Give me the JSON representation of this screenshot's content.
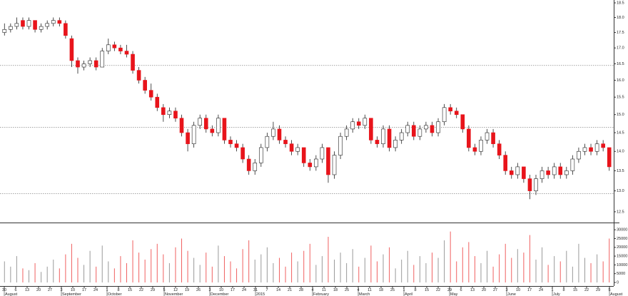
{
  "chart_data": {
    "type": "candlestick",
    "log_scale": true,
    "up_color": "#ffffff",
    "down_color": "#e8141b",
    "wick_color": "#222222",
    "candles": [
      [
        17.5,
        17.8,
        17.4,
        17.6
      ],
      [
        17.6,
        17.8,
        17.5,
        17.7
      ],
      [
        17.7,
        18.0,
        17.6,
        17.8
      ],
      [
        17.9,
        18.0,
        17.6,
        17.7
      ],
      [
        17.7,
        18.0,
        17.6,
        17.9
      ],
      [
        17.9,
        17.9,
        17.5,
        17.6
      ],
      [
        17.6,
        17.8,
        17.5,
        17.7
      ],
      [
        17.7,
        17.9,
        17.6,
        17.8
      ],
      [
        17.8,
        18.0,
        17.7,
        17.9
      ],
      [
        17.9,
        18.0,
        17.7,
        17.8
      ],
      [
        17.8,
        17.9,
        17.3,
        17.4
      ],
      [
        17.3,
        17.4,
        16.4,
        16.6
      ],
      [
        16.6,
        16.7,
        16.2,
        16.4
      ],
      [
        16.4,
        16.6,
        16.3,
        16.5
      ],
      [
        16.5,
        16.7,
        16.4,
        16.6
      ],
      [
        16.6,
        16.7,
        16.3,
        16.4
      ],
      [
        16.4,
        17.0,
        16.4,
        16.9
      ],
      [
        16.9,
        17.3,
        16.8,
        17.1
      ],
      [
        17.1,
        17.2,
        16.9,
        17.0
      ],
      [
        17.0,
        17.1,
        16.8,
        16.9
      ],
      [
        16.9,
        17.1,
        16.7,
        16.8
      ],
      [
        16.8,
        16.9,
        16.2,
        16.3
      ],
      [
        16.3,
        16.4,
        15.9,
        16.0
      ],
      [
        16.0,
        16.1,
        15.6,
        15.7
      ],
      [
        15.7,
        15.9,
        15.4,
        15.5
      ],
      [
        15.5,
        15.6,
        15.1,
        15.2
      ],
      [
        15.2,
        15.3,
        14.8,
        15.0
      ],
      [
        15.0,
        15.2,
        14.9,
        15.1
      ],
      [
        15.1,
        15.2,
        14.8,
        14.9
      ],
      [
        14.9,
        15.0,
        14.4,
        14.5
      ],
      [
        14.5,
        14.6,
        14.0,
        14.2
      ],
      [
        14.2,
        14.8,
        14.1,
        14.7
      ],
      [
        14.7,
        15.0,
        14.6,
        14.9
      ],
      [
        14.9,
        15.0,
        14.5,
        14.6
      ],
      [
        14.6,
        14.7,
        14.4,
        14.5
      ],
      [
        14.5,
        15.0,
        14.4,
        14.9
      ],
      [
        14.9,
        14.9,
        14.2,
        14.3
      ],
      [
        14.3,
        14.4,
        14.1,
        14.2
      ],
      [
        14.2,
        14.3,
        14.0,
        14.1
      ],
      [
        14.1,
        14.2,
        13.7,
        13.8
      ],
      [
        13.8,
        13.9,
        13.4,
        13.5
      ],
      [
        13.5,
        13.8,
        13.4,
        13.7
      ],
      [
        13.7,
        14.2,
        13.6,
        14.1
      ],
      [
        14.1,
        14.5,
        14.0,
        14.4
      ],
      [
        14.4,
        14.8,
        14.3,
        14.6
      ],
      [
        14.6,
        14.7,
        14.2,
        14.3
      ],
      [
        14.3,
        14.4,
        14.1,
        14.2
      ],
      [
        14.2,
        14.3,
        13.9,
        14.0
      ],
      [
        14.0,
        14.2,
        13.9,
        14.1
      ],
      [
        14.1,
        14.1,
        13.6,
        13.7
      ],
      [
        13.7,
        13.8,
        13.5,
        13.6
      ],
      [
        13.6,
        13.9,
        13.5,
        13.8
      ],
      [
        13.8,
        14.2,
        13.7,
        14.1
      ],
      [
        14.1,
        14.1,
        13.2,
        13.4
      ],
      [
        13.4,
        14.0,
        13.3,
        13.9
      ],
      [
        13.9,
        14.5,
        13.8,
        14.4
      ],
      [
        14.4,
        14.7,
        14.3,
        14.6
      ],
      [
        14.6,
        14.9,
        14.5,
        14.8
      ],
      [
        14.8,
        14.9,
        14.6,
        14.7
      ],
      [
        14.7,
        15.0,
        14.6,
        14.9
      ],
      [
        14.9,
        14.9,
        14.2,
        14.3
      ],
      [
        14.3,
        14.4,
        14.1,
        14.2
      ],
      [
        14.2,
        14.7,
        14.1,
        14.6
      ],
      [
        14.6,
        14.7,
        14.0,
        14.1
      ],
      [
        14.1,
        14.4,
        14.0,
        14.3
      ],
      [
        14.3,
        14.6,
        14.2,
        14.5
      ],
      [
        14.5,
        14.8,
        14.4,
        14.7
      ],
      [
        14.7,
        14.8,
        14.3,
        14.4
      ],
      [
        14.4,
        14.7,
        14.3,
        14.6
      ],
      [
        14.6,
        14.8,
        14.5,
        14.7
      ],
      [
        14.7,
        14.8,
        14.4,
        14.5
      ],
      [
        14.5,
        14.9,
        14.4,
        14.8
      ],
      [
        14.8,
        15.3,
        14.7,
        15.2
      ],
      [
        15.2,
        15.3,
        15.0,
        15.1
      ],
      [
        15.1,
        15.2,
        14.9,
        15.0
      ],
      [
        15.0,
        15.0,
        14.5,
        14.6
      ],
      [
        14.6,
        14.7,
        14.0,
        14.1
      ],
      [
        14.1,
        14.2,
        13.9,
        14.0
      ],
      [
        14.0,
        14.4,
        13.9,
        14.3
      ],
      [
        14.3,
        14.6,
        14.2,
        14.5
      ],
      [
        14.5,
        14.6,
        14.1,
        14.2
      ],
      [
        14.2,
        14.3,
        13.8,
        13.9
      ],
      [
        13.9,
        14.0,
        13.4,
        13.5
      ],
      [
        13.5,
        13.6,
        13.3,
        13.4
      ],
      [
        13.4,
        13.7,
        13.3,
        13.6
      ],
      [
        13.6,
        13.6,
        13.2,
        13.3
      ],
      [
        13.3,
        13.4,
        12.8,
        13.0
      ],
      [
        13.0,
        13.4,
        12.9,
        13.3
      ],
      [
        13.3,
        13.6,
        13.2,
        13.5
      ],
      [
        13.5,
        13.6,
        13.3,
        13.4
      ],
      [
        13.4,
        13.7,
        13.3,
        13.6
      ],
      [
        13.6,
        13.7,
        13.3,
        13.4
      ],
      [
        13.4,
        13.6,
        13.3,
        13.5
      ],
      [
        13.5,
        13.9,
        13.4,
        13.8
      ],
      [
        13.8,
        14.1,
        13.7,
        14.0
      ],
      [
        14.0,
        14.2,
        13.9,
        14.1
      ],
      [
        14.1,
        14.2,
        13.9,
        14.0
      ],
      [
        14.0,
        14.3,
        13.9,
        14.2
      ],
      [
        14.2,
        14.3,
        14.0,
        14.1
      ],
      [
        14.1,
        14.1,
        13.5,
        13.6
      ]
    ],
    "volume": [
      12000,
      9000,
      15000,
      8000,
      7000,
      11000,
      6000,
      9000,
      13000,
      8000,
      16000,
      22000,
      14000,
      10000,
      18000,
      9000,
      21000,
      12000,
      8000,
      15000,
      11000,
      24000,
      17000,
      13000,
      19000,
      22000,
      16000,
      11000,
      20000,
      25000,
      18000,
      14000,
      10000,
      17000,
      9000,
      21000,
      15000,
      12000,
      8000,
      19000,
      24000,
      13000,
      16000,
      20000,
      11000,
      14000,
      9000,
      17000,
      12000,
      18000,
      22000,
      10000,
      15000,
      26000,
      13000,
      17000,
      11000,
      19000,
      9000,
      14000,
      21000,
      12000,
      16000,
      20000,
      8000,
      13000,
      18000,
      10000,
      15000,
      11000,
      17000,
      14000,
      24000,
      29000,
      12000,
      20000,
      23000,
      15000,
      11000,
      18000,
      9000,
      16000,
      22000,
      14000,
      19000,
      17000,
      27000,
      13000,
      20000,
      10000,
      15000,
      12000,
      18000,
      9000,
      22000,
      14000,
      11000,
      16000,
      12000,
      25000
    ],
    "volume_up_color": "#999999",
    "volume_down_color": "#f06060",
    "ylim": [
      12.25,
      18.6
    ],
    "yticks": [
      12.5,
      {
        "value": 13,
        "label": "13.0"
      },
      13.5,
      {
        "value": 14,
        "label": "14.0"
      },
      14.5,
      {
        "value": 15,
        "label": "15.0"
      },
      15.5,
      {
        "value": 16,
        "label": "16.0"
      },
      16.5,
      {
        "value": 17,
        "label": "17.0"
      },
      17.5,
      {
        "value": 18,
        "label": "18.0"
      },
      18.5
    ],
    "reference_lines": [
      16.45,
      14.65,
      12.93
    ],
    "volume_ylim": [
      0,
      32500
    ],
    "volume_yticks": [
      0,
      5000,
      10000,
      15000,
      20000,
      25000,
      30000
    ],
    "week_labels": [
      "30",
      "6",
      "13",
      "20",
      "27",
      "3",
      "10",
      "17",
      "24",
      "1",
      "8",
      "15",
      "22",
      "29",
      "5",
      "12",
      "19",
      "26",
      "3",
      "10",
      "17",
      "24",
      "31",
      "7",
      "14",
      "21",
      "28",
      "4",
      "11",
      "18",
      "25",
      "4",
      "11",
      "18",
      "25",
      "1",
      "8",
      "15",
      "22",
      "29",
      "6",
      "13",
      "20",
      "27",
      "3",
      "10",
      "17",
      "24",
      "1",
      "8",
      "15",
      "22",
      "29",
      "5"
    ],
    "month_labels": [
      {
        "value": 0,
        "label": "August"
      },
      {
        "value": 5,
        "label": "September"
      },
      {
        "value": 9,
        "label": "October"
      },
      {
        "value": 14,
        "label": "November"
      },
      {
        "value": 18,
        "label": "December"
      },
      {
        "value": 22,
        "label": "2015"
      },
      {
        "value": 27,
        "label": "February"
      },
      {
        "value": 31,
        "label": "March"
      },
      {
        "value": 35,
        "label": "April"
      },
      {
        "value": 39,
        "label": "May"
      },
      {
        "value": 44,
        "label": "June"
      },
      {
        "value": 48,
        "label": "July"
      },
      {
        "value": 53,
        "label": "August"
      }
    ]
  }
}
